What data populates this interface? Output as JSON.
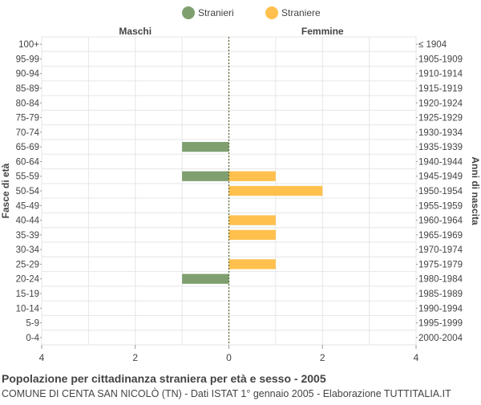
{
  "chart_data": {
    "type": "bar",
    "orientation": "horizontal-population-pyramid",
    "title": "Popolazione per cittadinanza straniera per età e sesso - 2005",
    "subtitle": "COMUNE DI CENTA SAN NICOLÒ (TN) - Dati ISTAT 1° gennaio 2005 - Elaborazione TUTTITALIA.IT",
    "left_header": "Maschi",
    "right_header": "Femmine",
    "ylabel_left": "Fasce di età",
    "ylabel_right": "Anni di nascita",
    "age_groups": [
      "100+",
      "95-99",
      "90-94",
      "85-89",
      "80-84",
      "75-79",
      "70-74",
      "65-69",
      "60-64",
      "55-59",
      "50-54",
      "45-49",
      "40-44",
      "35-39",
      "30-34",
      "25-29",
      "20-24",
      "15-19",
      "10-14",
      "5-9",
      "0-4"
    ],
    "birth_years": [
      "≤ 1904",
      "1905-1909",
      "1910-1914",
      "1915-1919",
      "1920-1924",
      "1925-1929",
      "1930-1934",
      "1935-1939",
      "1940-1944",
      "1945-1949",
      "1950-1954",
      "1955-1959",
      "1960-1964",
      "1965-1969",
      "1970-1974",
      "1975-1979",
      "1980-1984",
      "1985-1989",
      "1990-1994",
      "1995-1999",
      "2000-2004"
    ],
    "series": [
      {
        "name": "Stranieri",
        "color": "#7f9f6f",
        "values": [
          0,
          0,
          0,
          0,
          0,
          0,
          0,
          1,
          0,
          1,
          0,
          0,
          0,
          0,
          0,
          0,
          1,
          0,
          0,
          0,
          0
        ]
      },
      {
        "name": "Straniere",
        "color": "#ffc04d",
        "values": [
          0,
          0,
          0,
          0,
          0,
          0,
          0,
          0,
          0,
          1,
          2,
          0,
          1,
          1,
          0,
          1,
          0,
          0,
          0,
          0,
          0
        ]
      }
    ],
    "xlim": [
      -4,
      4
    ],
    "x_ticks": [
      -4,
      -2,
      0,
      2,
      4
    ],
    "x_tick_labels": [
      "4",
      "2",
      "0",
      "2",
      "4"
    ],
    "grid": true,
    "legend_position": "top-center"
  }
}
